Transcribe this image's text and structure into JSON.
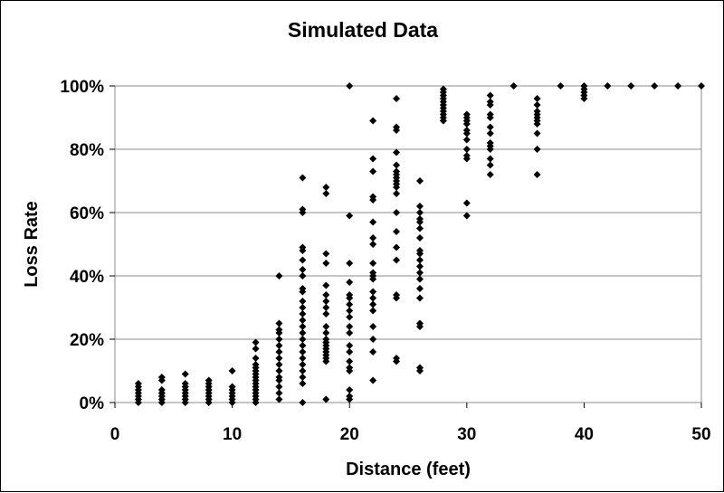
{
  "chart_data": {
    "type": "scatter",
    "title": "Simulated Data",
    "xlabel": "Distance (feet)",
    "ylabel": "Loss Rate",
    "xlim": [
      0,
      50
    ],
    "ylim": [
      0,
      100
    ],
    "x_ticks": [
      0,
      10,
      20,
      30,
      40,
      50
    ],
    "x_tick_labels": [
      "0",
      "10",
      "20",
      "30",
      "40",
      "50"
    ],
    "y_ticks": [
      0,
      20,
      40,
      60,
      80,
      100
    ],
    "y_tick_labels": [
      "0%",
      "20%",
      "40%",
      "60%",
      "80%",
      "100%"
    ],
    "grid": "horizontal",
    "legend": "none",
    "marker": "diamond",
    "marker_color": "#000000",
    "gridline_color": "#8c8c8c",
    "points": [
      [
        2,
        0
      ],
      [
        2,
        1
      ],
      [
        2,
        2
      ],
      [
        2,
        3
      ],
      [
        2,
        4
      ],
      [
        2,
        5
      ],
      [
        2,
        6
      ],
      [
        4,
        0
      ],
      [
        4,
        1
      ],
      [
        4,
        2
      ],
      [
        4,
        3
      ],
      [
        4,
        4
      ],
      [
        4,
        7
      ],
      [
        4,
        8
      ],
      [
        6,
        0
      ],
      [
        6,
        1
      ],
      [
        6,
        2
      ],
      [
        6,
        3
      ],
      [
        6,
        4
      ],
      [
        6,
        5
      ],
      [
        6,
        6
      ],
      [
        6,
        9
      ],
      [
        8,
        0
      ],
      [
        8,
        1
      ],
      [
        8,
        2
      ],
      [
        8,
        3
      ],
      [
        8,
        4
      ],
      [
        8,
        5
      ],
      [
        8,
        6
      ],
      [
        8,
        7
      ],
      [
        10,
        0
      ],
      [
        10,
        1
      ],
      [
        10,
        2
      ],
      [
        10,
        3
      ],
      [
        10,
        4
      ],
      [
        10,
        5
      ],
      [
        10,
        10
      ],
      [
        12,
        0
      ],
      [
        12,
        1
      ],
      [
        12,
        2
      ],
      [
        12,
        3
      ],
      [
        12,
        4
      ],
      [
        12,
        5
      ],
      [
        12,
        6
      ],
      [
        12,
        7
      ],
      [
        12,
        8
      ],
      [
        12,
        9
      ],
      [
        12,
        10
      ],
      [
        12,
        11
      ],
      [
        12,
        12
      ],
      [
        12,
        14
      ],
      [
        12,
        17
      ],
      [
        12,
        19
      ],
      [
        14,
        1
      ],
      [
        14,
        3
      ],
      [
        14,
        5
      ],
      [
        14,
        7
      ],
      [
        14,
        8
      ],
      [
        14,
        10
      ],
      [
        14,
        12
      ],
      [
        14,
        14
      ],
      [
        14,
        16
      ],
      [
        14,
        18
      ],
      [
        14,
        20
      ],
      [
        14,
        22
      ],
      [
        14,
        23
      ],
      [
        14,
        25
      ],
      [
        14,
        40
      ],
      [
        16,
        0
      ],
      [
        16,
        6
      ],
      [
        16,
        8
      ],
      [
        16,
        10
      ],
      [
        16,
        12
      ],
      [
        16,
        14
      ],
      [
        16,
        16
      ],
      [
        16,
        18
      ],
      [
        16,
        20
      ],
      [
        16,
        22
      ],
      [
        16,
        24
      ],
      [
        16,
        26
      ],
      [
        16,
        28
      ],
      [
        16,
        30
      ],
      [
        16,
        32
      ],
      [
        16,
        35
      ],
      [
        16,
        36
      ],
      [
        16,
        40
      ],
      [
        16,
        42
      ],
      [
        16,
        45
      ],
      [
        16,
        48
      ],
      [
        16,
        49
      ],
      [
        16,
        60
      ],
      [
        16,
        61
      ],
      [
        16,
        71
      ],
      [
        18,
        1
      ],
      [
        18,
        13
      ],
      [
        18,
        14
      ],
      [
        18,
        15
      ],
      [
        18,
        16
      ],
      [
        18,
        17
      ],
      [
        18,
        18
      ],
      [
        18,
        19
      ],
      [
        18,
        20
      ],
      [
        18,
        22
      ],
      [
        18,
        24
      ],
      [
        18,
        28
      ],
      [
        18,
        30
      ],
      [
        18,
        32
      ],
      [
        18,
        34
      ],
      [
        18,
        37
      ],
      [
        18,
        44
      ],
      [
        18,
        47
      ],
      [
        18,
        66
      ],
      [
        18,
        68
      ],
      [
        20,
        1
      ],
      [
        20,
        2
      ],
      [
        20,
        4
      ],
      [
        20,
        10
      ],
      [
        20,
        11
      ],
      [
        20,
        13
      ],
      [
        20,
        16
      ],
      [
        20,
        18
      ],
      [
        20,
        22
      ],
      [
        20,
        24
      ],
      [
        20,
        27
      ],
      [
        20,
        29
      ],
      [
        20,
        31
      ],
      [
        20,
        33
      ],
      [
        20,
        34
      ],
      [
        20,
        38
      ],
      [
        20,
        44
      ],
      [
        20,
        59
      ],
      [
        20,
        100
      ],
      [
        22,
        7
      ],
      [
        22,
        16
      ],
      [
        22,
        20
      ],
      [
        22,
        24
      ],
      [
        22,
        29
      ],
      [
        22,
        31
      ],
      [
        22,
        33
      ],
      [
        22,
        35
      ],
      [
        22,
        39
      ],
      [
        22,
        40
      ],
      [
        22,
        41
      ],
      [
        22,
        44
      ],
      [
        22,
        50
      ],
      [
        22,
        52
      ],
      [
        22,
        57
      ],
      [
        22,
        64
      ],
      [
        22,
        65
      ],
      [
        22,
        73
      ],
      [
        22,
        77
      ],
      [
        22,
        89
      ],
      [
        24,
        13
      ],
      [
        24,
        14
      ],
      [
        24,
        33
      ],
      [
        24,
        34
      ],
      [
        24,
        45
      ],
      [
        24,
        49
      ],
      [
        24,
        54
      ],
      [
        24,
        60
      ],
      [
        24,
        66
      ],
      [
        24,
        68
      ],
      [
        24,
        69
      ],
      [
        24,
        70
      ],
      [
        24,
        71
      ],
      [
        24,
        72
      ],
      [
        24,
        73
      ],
      [
        24,
        75
      ],
      [
        24,
        79
      ],
      [
        24,
        86
      ],
      [
        24,
        87
      ],
      [
        24,
        96
      ],
      [
        26,
        10
      ],
      [
        26,
        11
      ],
      [
        26,
        24
      ],
      [
        26,
        25
      ],
      [
        26,
        33
      ],
      [
        26,
        36
      ],
      [
        26,
        39
      ],
      [
        26,
        41
      ],
      [
        26,
        43
      ],
      [
        26,
        45
      ],
      [
        26,
        47
      ],
      [
        26,
        48
      ],
      [
        26,
        52
      ],
      [
        26,
        55
      ],
      [
        26,
        57
      ],
      [
        26,
        58
      ],
      [
        26,
        60
      ],
      [
        26,
        62
      ],
      [
        26,
        70
      ],
      [
        28,
        89
      ],
      [
        28,
        90
      ],
      [
        28,
        91
      ],
      [
        28,
        92
      ],
      [
        28,
        93
      ],
      [
        28,
        94
      ],
      [
        28,
        95
      ],
      [
        28,
        96
      ],
      [
        28,
        97
      ],
      [
        28,
        98
      ],
      [
        28,
        99
      ],
      [
        30,
        59
      ],
      [
        30,
        63
      ],
      [
        30,
        77
      ],
      [
        30,
        78
      ],
      [
        30,
        80
      ],
      [
        30,
        83
      ],
      [
        30,
        85
      ],
      [
        30,
        86
      ],
      [
        30,
        88
      ],
      [
        30,
        89
      ],
      [
        30,
        90
      ],
      [
        30,
        91
      ],
      [
        32,
        72
      ],
      [
        32,
        75
      ],
      [
        32,
        77
      ],
      [
        32,
        80
      ],
      [
        32,
        81
      ],
      [
        32,
        82
      ],
      [
        32,
        85
      ],
      [
        32,
        87
      ],
      [
        32,
        90
      ],
      [
        32,
        91
      ],
      [
        32,
        94
      ],
      [
        32,
        95
      ],
      [
        32,
        97
      ],
      [
        34,
        100
      ],
      [
        36,
        72
      ],
      [
        36,
        80
      ],
      [
        36,
        85
      ],
      [
        36,
        88
      ],
      [
        36,
        89
      ],
      [
        36,
        90
      ],
      [
        36,
        91
      ],
      [
        36,
        92
      ],
      [
        36,
        94
      ],
      [
        36,
        96
      ],
      [
        38,
        100
      ],
      [
        40,
        96
      ],
      [
        40,
        97
      ],
      [
        40,
        98
      ],
      [
        40,
        99
      ],
      [
        40,
        100
      ],
      [
        42,
        100
      ],
      [
        44,
        100
      ],
      [
        46,
        100
      ],
      [
        48,
        100
      ],
      [
        50,
        100
      ]
    ]
  }
}
